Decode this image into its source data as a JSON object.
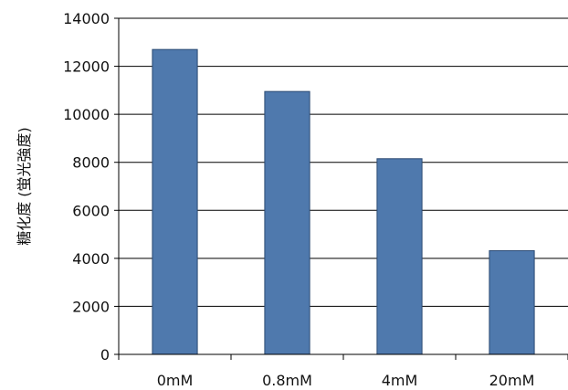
{
  "chart_data": {
    "type": "bar",
    "title": "",
    "xlabel": "",
    "ylabel": "糖化度 (蛍光強度)",
    "categories": [
      "0mM",
      "0.8mM",
      "4mM",
      "20mM"
    ],
    "values": [
      12700,
      10950,
      8150,
      4320
    ],
    "ylim": [
      0,
      14000
    ],
    "yticks": [
      "0",
      "2000",
      "4000",
      "6000",
      "8000",
      "10000",
      "12000",
      "14000"
    ],
    "grid": true,
    "legend": "none",
    "colors": {
      "bar_fill": "#4f79ad",
      "bar_stroke": "#2b4a73",
      "grid": "#000000",
      "axis": "#000000"
    }
  }
}
